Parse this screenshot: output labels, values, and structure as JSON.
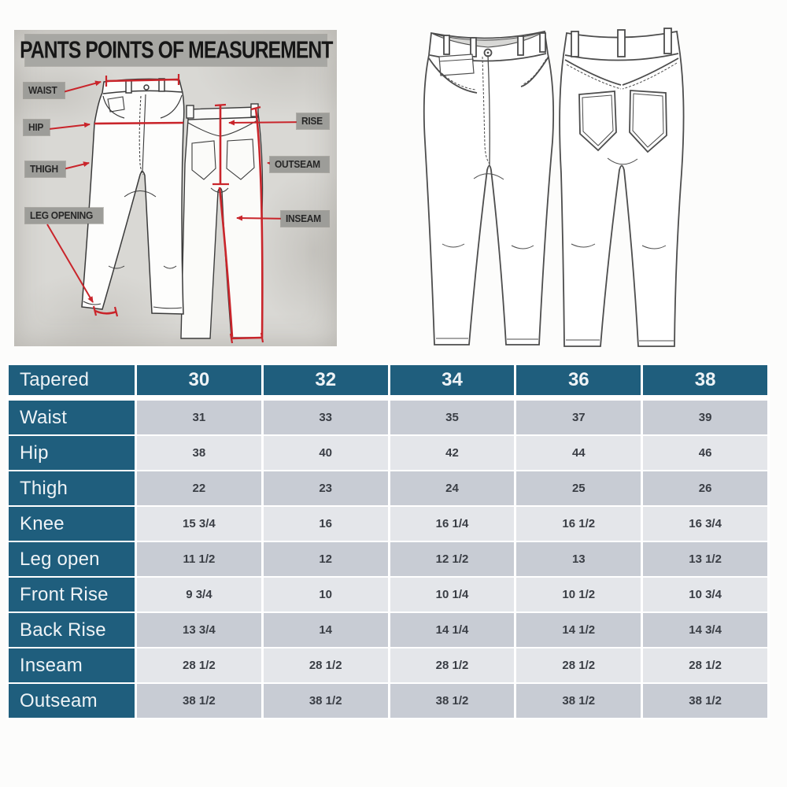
{
  "diagram": {
    "title": "PANTS POINTS OF MEASUREMENT",
    "labels": {
      "waist": "WAIST",
      "hip": "HIP",
      "thigh": "THIGH",
      "leg_opening": "LEG OPENING",
      "rise": "RISE",
      "outseam": "OUTSEAM",
      "inseam": "INSEAM"
    },
    "accent_color": "#c9252b",
    "panel_color": "#d9d8d4",
    "chip_color": "#9d9d99",
    "sketches": [
      "pants-front-sketch",
      "pants-back-sketch"
    ]
  },
  "flats": {
    "sketches": [
      "jeans-front-flat",
      "jeans-back-flat"
    ]
  },
  "size_table": {
    "corner_label": "Tapered",
    "columns": [
      "30",
      "32",
      "34",
      "36",
      "38"
    ],
    "rows": [
      {
        "label": "Waist",
        "values": [
          "31",
          "33",
          "35",
          "37",
          "39"
        ]
      },
      {
        "label": "Hip",
        "values": [
          "38",
          "40",
          "42",
          "44",
          "46"
        ]
      },
      {
        "label": "Thigh",
        "values": [
          "22",
          "23",
          "24",
          "25",
          "26"
        ]
      },
      {
        "label": "Knee",
        "values": [
          "15 3/4",
          "16",
          "16 1/4",
          "16 1/2",
          "16 3/4"
        ]
      },
      {
        "label": "Leg open",
        "values": [
          "11 1/2",
          "12",
          "12 1/2",
          "13",
          "13 1/2"
        ]
      },
      {
        "label": "Front Rise",
        "values": [
          "9 3/4",
          "10",
          "10 1/4",
          "10 1/2",
          "10 3/4"
        ]
      },
      {
        "label": "Back Rise",
        "values": [
          "13 3/4",
          "14",
          "14 1/4",
          "14 1/2",
          "14 3/4"
        ]
      },
      {
        "label": "Inseam",
        "values": [
          "28 1/2",
          "28 1/2",
          "28 1/2",
          "28 1/2",
          "28 1/2"
        ]
      },
      {
        "label": "Outseam",
        "values": [
          "38 1/2",
          "38 1/2",
          "38 1/2",
          "38 1/2",
          "38 1/2"
        ]
      }
    ],
    "colors": {
      "header": "#1f5e7d",
      "row_dark": "#c8ccd4",
      "row_light": "#e4e6ea",
      "cell_text": "#3a3e45"
    }
  }
}
